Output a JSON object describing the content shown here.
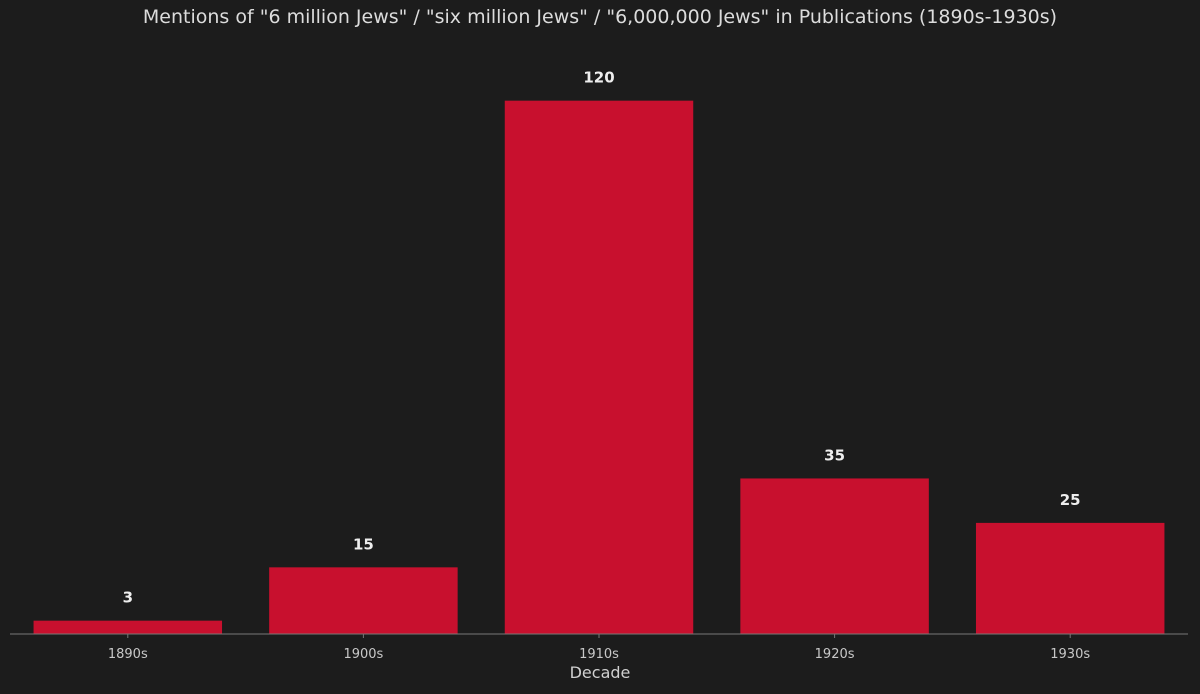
{
  "chart_data": {
    "type": "bar",
    "title": "Mentions of \"6 million Jews\" / \"six million Jews\" / \"6,000,000 Jews\" in Publications (1890s-1930s)",
    "xlabel": "Decade",
    "ylabel": "",
    "categories": [
      "1890s",
      "1900s",
      "1910s",
      "1920s",
      "1930s"
    ],
    "values": [
      3,
      15,
      120,
      35,
      25
    ],
    "data_labels": [
      "3",
      "15",
      "120",
      "35",
      "25"
    ],
    "ylim": [
      0,
      126
    ],
    "grid": false,
    "legend": "none",
    "bar_color": "#c8102e",
    "background_color": "#1c1c1c",
    "axis_color": "#777777"
  }
}
